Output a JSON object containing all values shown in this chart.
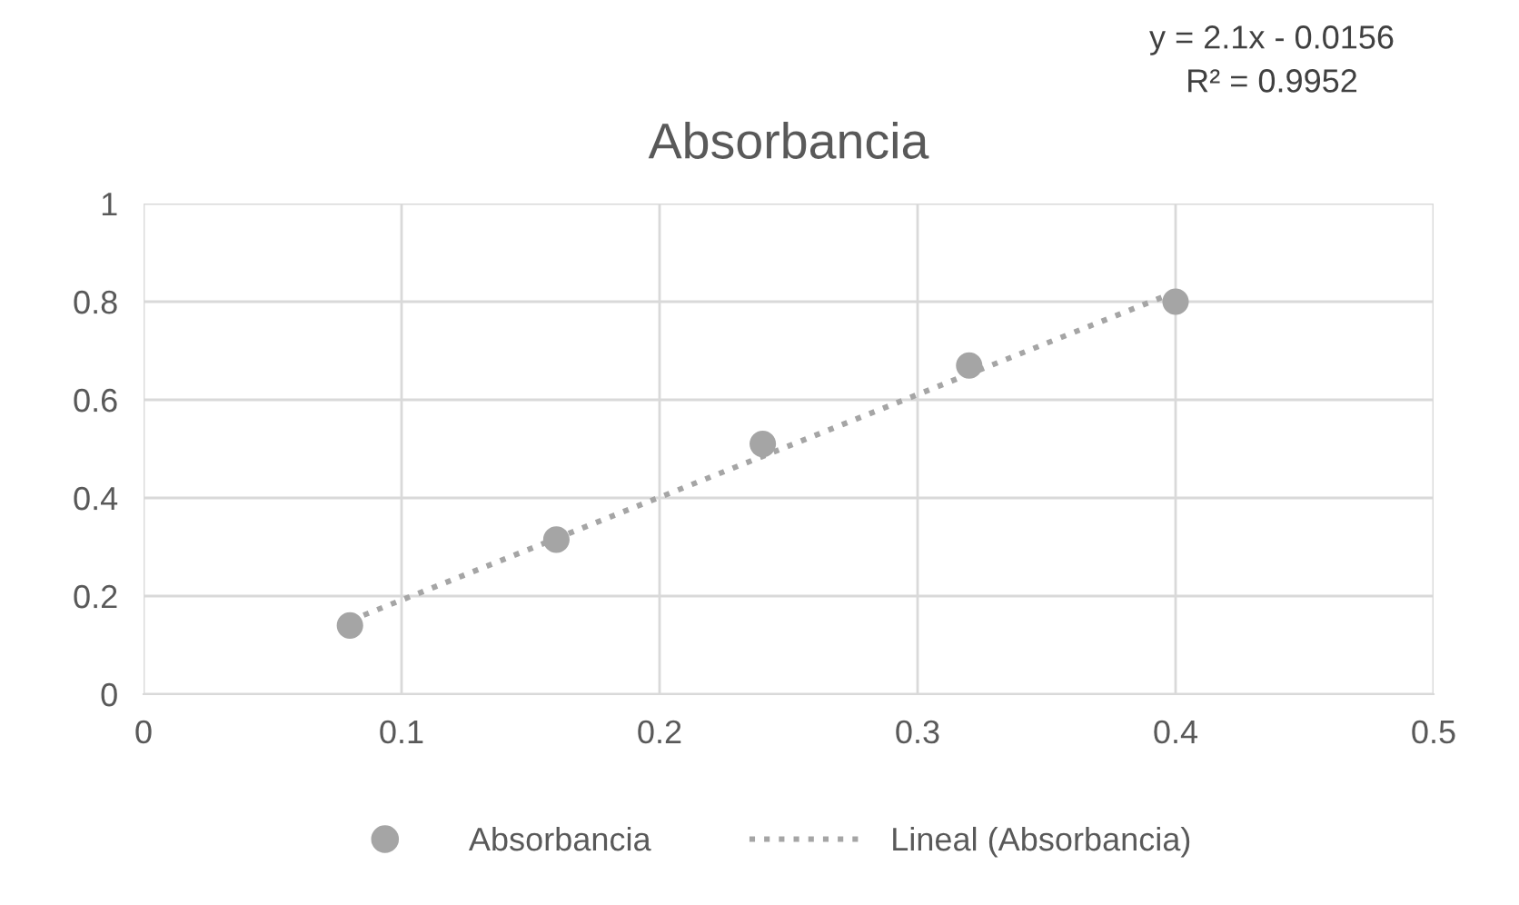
{
  "chart_data": {
    "type": "scatter",
    "title": "Absorbancia",
    "series": [
      {
        "name": "Absorbancia",
        "color": "#a5a5a5",
        "marker": "circle",
        "x": [
          0.08,
          0.16,
          0.24,
          0.32,
          0.4
        ],
        "values": [
          0.14,
          0.315,
          0.51,
          0.67,
          0.8
        ]
      },
      {
        "name": "Lineal (Absorbancia)",
        "type": "line",
        "color": "#a5a5a5",
        "line_style": "dotted",
        "x": [
          0.08,
          0.4
        ],
        "values": [
          0.15,
          0.82
        ]
      }
    ],
    "annotations": [
      "y = 2.1x - 0.0156",
      "R² = 0.9952"
    ],
    "xlim": [
      0,
      0.5
    ],
    "xticks": [
      0,
      0.1,
      0.2,
      0.3,
      0.4,
      0.5
    ],
    "ylim": [
      0,
      1
    ],
    "yticks": [
      0,
      0.2,
      0.4,
      0.6,
      0.8,
      1
    ],
    "grid": true,
    "legend": "bottom"
  }
}
